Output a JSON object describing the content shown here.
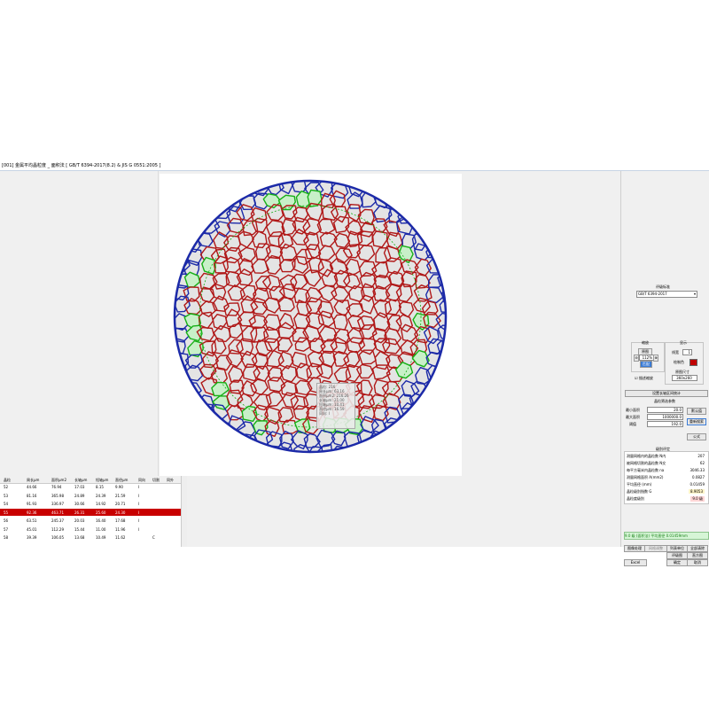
{
  "window": {
    "title": "[001] 金属平均晶粒度 _ 面积法 [  GB/T 6394-2017(8.2) & JIS G 0551:2005 ]"
  },
  "tooltip": {
    "lines": [
      "晶粒: 216",
      "周长μm: 63.16",
      "面积μm2: 216.26",
      "长轴μm: 21.00",
      "短轴μm: 10.41",
      "直径μm: 16.59",
      "同向: I"
    ]
  },
  "table": {
    "headers": [
      "晶粒",
      "周长μm",
      "面积μm2",
      "长轴μm",
      "短轴μm",
      "直径μm",
      "同向",
      "切割",
      "同外"
    ],
    "rows": [
      [
        "52",
        "44.66",
        "76.94",
        "17.03",
        "8.15",
        "9.90",
        "I",
        "",
        ""
      ],
      [
        "53",
        "81.16",
        "365.98",
        "24.89",
        "24.39",
        "21.59",
        "I",
        "",
        ""
      ],
      [
        "54",
        "91.93",
        "336.97",
        "30.66",
        "14.92",
        "20.71",
        "I",
        "",
        ""
      ],
      [
        "55",
        "92.36",
        "463.71",
        "26.31",
        "25.60",
        "24.30",
        "I",
        "",
        ""
      ],
      [
        "56",
        "63.51",
        "245.37",
        "20.03",
        "16.40",
        "17.68",
        "I",
        "",
        ""
      ],
      [
        "57",
        "45.01",
        "112.29",
        "15.44",
        "11.00",
        "11.96",
        "I",
        "",
        ""
      ],
      [
        "58",
        "39.39",
        "106.05",
        "13.68",
        "10.49",
        "11.62",
        "",
        "C",
        ""
      ]
    ],
    "selected_index": 3
  },
  "right": {
    "standard_label": "评级标准",
    "standard_value": "GB/T 6394-2017",
    "zoom_label": "缩放",
    "zoom_btn": "原图",
    "zoom_value": "112%",
    "zoom_fit": "匹配",
    "display_label": "显示",
    "linewidth_label": "线宽",
    "linewidth_value": "1",
    "color_label": "绘制色",
    "size_label": "原图尺寸",
    "size_value": "360x260",
    "checkbox_label": "描述缩放",
    "set_btn": "设置长轴区间统计",
    "grain_params_label": "晶粒筛选参数",
    "min_area_label": "最小面积",
    "min_area_value": "20.0",
    "max_area_label": "最大面积",
    "max_area_value": "1000000.0",
    "threshold_label": "阈值",
    "threshold_value": "192.0",
    "default_btn": "默认值",
    "research_btn": "重新搜索",
    "formula_btn": "公式",
    "grade_label": "级别评定",
    "results": [
      {
        "k": "测量网格内的晶粒数  N内",
        "v": "207"
      },
      {
        "k": "被网格切割的晶粒数  N交",
        "v": "62"
      },
      {
        "k": "每平方毫米内晶粒数  na",
        "v": "3046.33"
      },
      {
        "k": "测量网格面积  A(mm2)",
        "v": "0.0827"
      },
      {
        "k": "平均直径 (mm)",
        "v": "0.01459"
      },
      {
        "k": "晶粒级别指数 G",
        "v": "8.9053"
      },
      {
        "k": "晶粒度级别",
        "v": "9.0 级"
      }
    ],
    "summary": "9.0 级 (面积法) 平均直径 0.01459mm",
    "btn_image": "图像处理",
    "btn_fit": "网格调整",
    "btn_list": "列表单位",
    "btn_all": "全部清除",
    "btn_grade": "评级图",
    "btn_hist": "直方图",
    "btn_excel": "Excel",
    "btn_ok": "确定",
    "btn_cancel": "取消"
  },
  "colors": {
    "grain_edge": "#b01818",
    "outer_grain": "#1c2aa8",
    "cut_grain": "#17b017",
    "selected_row": "#c80000",
    "grain_fill": "#e4e4e4"
  }
}
